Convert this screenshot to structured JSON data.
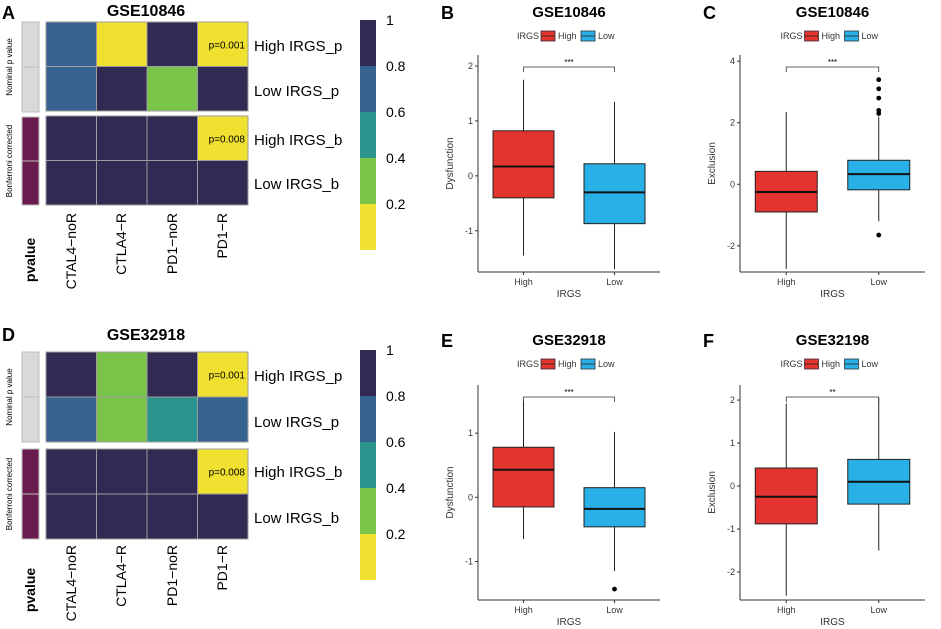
{
  "colors": {
    "high": "#e3342f",
    "low": "#29b0e6",
    "scale": [
      "#f0e131",
      "#7bc44a",
      "#2b948c",
      "#35628f",
      "#332a53"
    ],
    "annotation_grey": "#d9d9d9",
    "annotation_purple": "#6a1b4d"
  },
  "heatmaps": [
    {
      "panel": "A",
      "title": "GSE10846",
      "rows": [
        "High IRGS_p",
        "Low IRGS_p",
        "High IRGS_b",
        "Low IRGS_b"
      ],
      "cols": [
        "CTAL4−noR",
        "CTLA4−R",
        "PD1−noR",
        "PD1−R"
      ],
      "values": [
        [
          0.8,
          0.1,
          1.0,
          0.001
        ],
        [
          0.8,
          1.0,
          0.3,
          1.0
        ],
        [
          1.0,
          1.0,
          1.0,
          0.008
        ],
        [
          1.0,
          1.0,
          1.0,
          1.0
        ]
      ],
      "labels": [
        [
          "",
          "",
          "",
          "p=0.001"
        ],
        [
          "",
          "",
          "",
          ""
        ],
        [
          "",
          "",
          "",
          "p=0.008"
        ],
        [
          "",
          "",
          "",
          ""
        ]
      ],
      "group_labels": [
        "Nominal p value",
        "Bonferroni corrected"
      ],
      "annotation_label": "pvalue",
      "legend_ticks": [
        "1",
        "0.8",
        "0.6",
        "0.4",
        "0.2"
      ]
    },
    {
      "panel": "D",
      "title": "GSE32918",
      "rows": [
        "High IRGS_p",
        "Low IRGS_p",
        "High IRGS_b",
        "Low IRGS_b"
      ],
      "cols": [
        "CTAL4−noR",
        "CTLA4−R",
        "PD1−noR",
        "PD1−R"
      ],
      "values": [
        [
          1.0,
          0.3,
          1.0,
          0.001
        ],
        [
          0.8,
          0.3,
          0.5,
          0.8
        ],
        [
          1.0,
          1.0,
          1.0,
          0.008
        ],
        [
          1.0,
          1.0,
          1.0,
          1.0
        ]
      ],
      "labels": [
        [
          "",
          "",
          "",
          "p=0.001"
        ],
        [
          "",
          "",
          "",
          ""
        ],
        [
          "",
          "",
          "",
          "p=0.008"
        ],
        [
          "",
          "",
          "",
          ""
        ]
      ],
      "group_labels": [
        "Nominal p value",
        "Bonferroni corrected"
      ],
      "annotation_label": "pvalue",
      "legend_ticks": [
        "1",
        "0.8",
        "0.6",
        "0.4",
        "0.2"
      ]
    }
  ],
  "chart_data": [
    {
      "panel": "B",
      "type": "box",
      "title": "GSE10846",
      "legend_title": "IRGS",
      "legend": [
        "High",
        "Low"
      ],
      "xlabel": "IRGS",
      "ylabel": "Dysfunction",
      "ylim": [
        -1.75,
        2.2
      ],
      "yticks": [
        -1,
        0,
        1,
        2
      ],
      "categories": [
        "High",
        "Low"
      ],
      "significance": "***",
      "boxes": [
        {
          "name": "High",
          "q1": -0.4,
          "median": 0.17,
          "q3": 0.82,
          "whisker_low": -1.45,
          "whisker_high": 1.75,
          "outliers": []
        },
        {
          "name": "Low",
          "q1": -0.87,
          "median": -0.3,
          "q3": 0.22,
          "whisker_low": -1.7,
          "whisker_high": 1.35,
          "outliers": []
        }
      ]
    },
    {
      "panel": "C",
      "type": "box",
      "title": "GSE10846",
      "legend_title": "IRGS",
      "legend": [
        "High",
        "Low"
      ],
      "xlabel": "IRGS",
      "ylabel": "Exclusion",
      "ylim": [
        -2.85,
        4.2
      ],
      "yticks": [
        -2,
        0,
        2,
        4
      ],
      "categories": [
        "High",
        "Low"
      ],
      "significance": "***",
      "boxes": [
        {
          "name": "High",
          "q1": -0.9,
          "median": -0.25,
          "q3": 0.42,
          "whisker_low": -2.75,
          "whisker_high": 2.35,
          "outliers": []
        },
        {
          "name": "Low",
          "q1": -0.18,
          "median": 0.33,
          "q3": 0.78,
          "whisker_low": -1.2,
          "whisker_high": 2.2,
          "outliers": [
            3.4,
            3.1,
            2.8,
            2.4,
            2.3,
            -1.65
          ]
        }
      ]
    },
    {
      "panel": "E",
      "type": "box",
      "title": "GSE32918",
      "legend_title": "IRGS",
      "legend": [
        "High",
        "Low"
      ],
      "xlabel": "IRGS",
      "ylabel": "Dysfunction",
      "ylim": [
        -1.6,
        1.75
      ],
      "yticks": [
        -1,
        0,
        1
      ],
      "categories": [
        "High",
        "Low"
      ],
      "significance": "***",
      "boxes": [
        {
          "name": "High",
          "q1": -0.15,
          "median": 0.43,
          "q3": 0.78,
          "whisker_low": -0.65,
          "whisker_high": 1.5,
          "outliers": []
        },
        {
          "name": "Low",
          "q1": -0.46,
          "median": -0.18,
          "q3": 0.15,
          "whisker_low": -1.15,
          "whisker_high": 1.02,
          "outliers": [
            -1.43
          ]
        }
      ]
    },
    {
      "panel": "F",
      "type": "box",
      "title": "GSE32198",
      "legend_title": "IRGS",
      "legend": [
        "High",
        "Low"
      ],
      "xlabel": "IRGS",
      "ylabel": "Exclusion",
      "ylim": [
        -2.65,
        2.35
      ],
      "yticks": [
        -2,
        -1,
        0,
        1,
        2
      ],
      "categories": [
        "High",
        "Low"
      ],
      "significance": "**",
      "boxes": [
        {
          "name": "High",
          "q1": -0.88,
          "median": -0.25,
          "q3": 0.42,
          "whisker_low": -2.55,
          "whisker_high": 1.92,
          "outliers": []
        },
        {
          "name": "Low",
          "q1": -0.42,
          "median": 0.1,
          "q3": 0.62,
          "whisker_low": -1.5,
          "whisker_high": 2.05,
          "outliers": []
        }
      ]
    }
  ]
}
